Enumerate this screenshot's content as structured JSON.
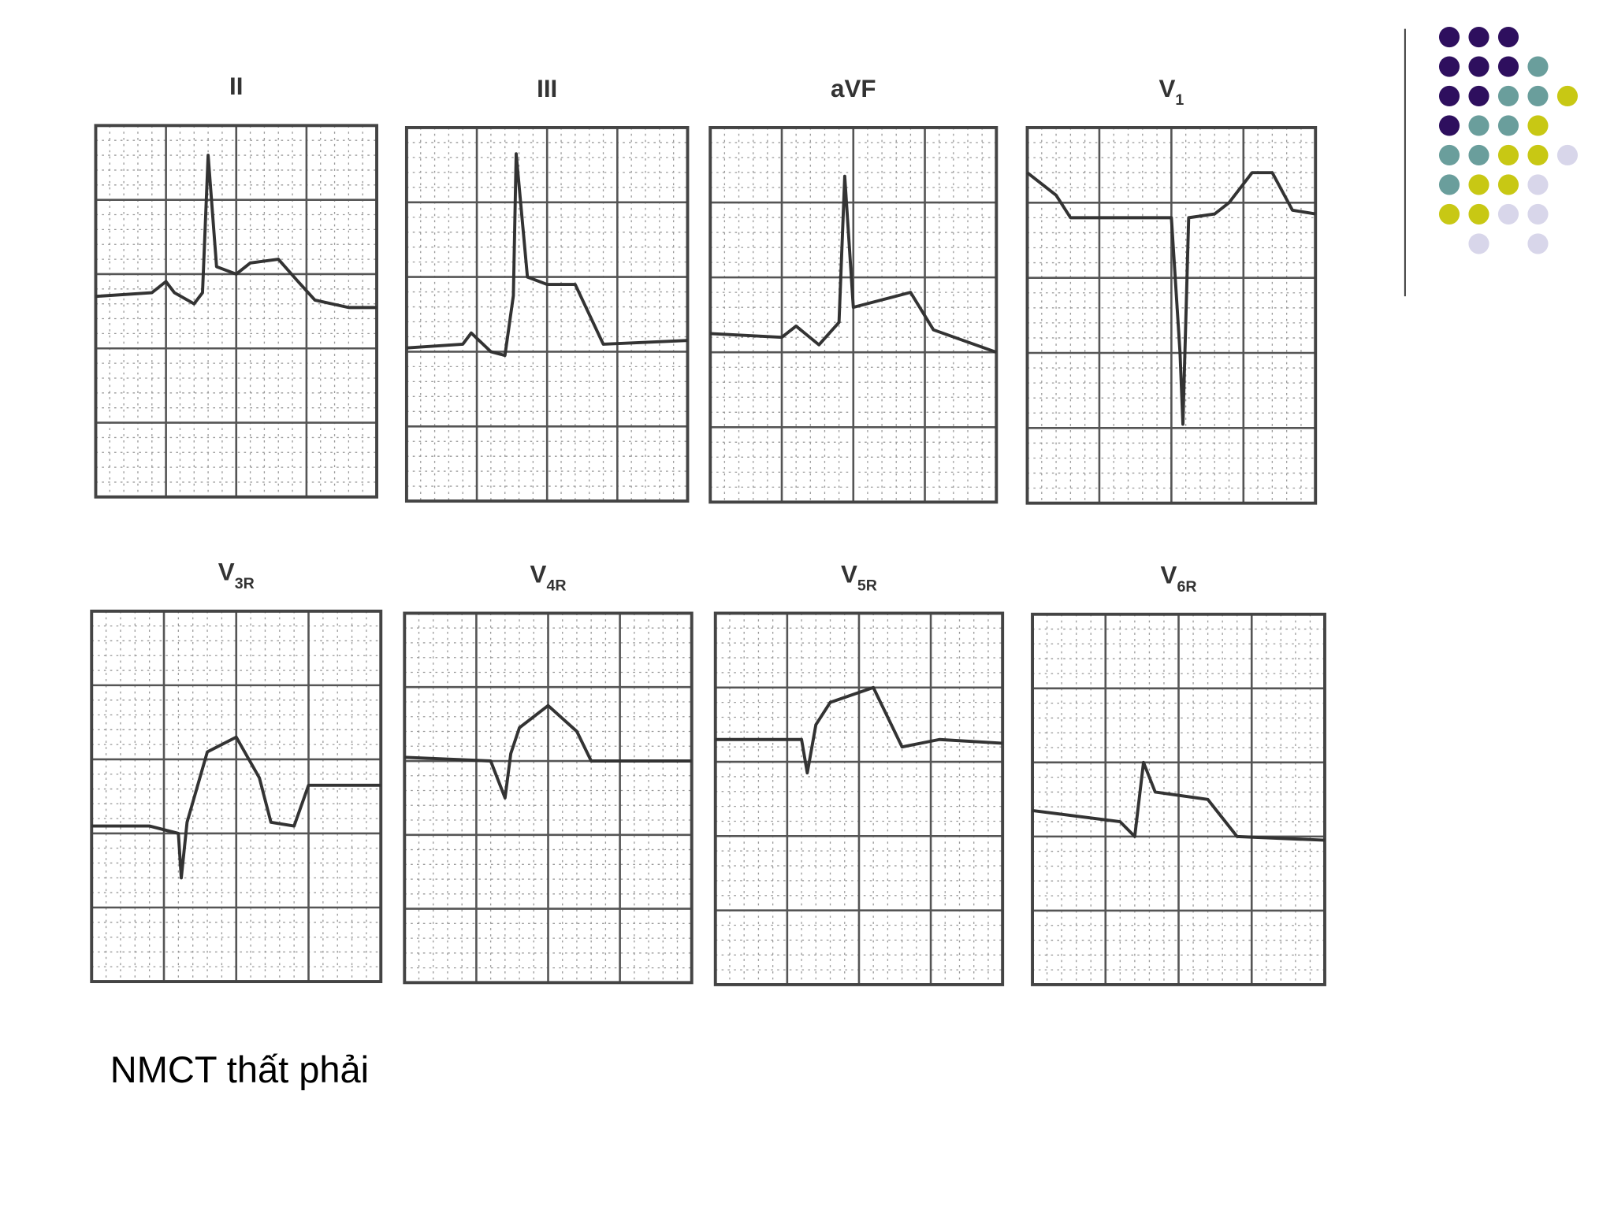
{
  "panels": [
    {
      "lead": "II"
    },
    {
      "lead": "III"
    },
    {
      "lead": "aVF"
    },
    {
      "lead": "V",
      "sub": "1"
    },
    {
      "lead": "V",
      "sub": "3R"
    },
    {
      "lead": "V",
      "sub": "4R"
    },
    {
      "lead": "V",
      "sub": "5R"
    },
    {
      "lead": "V",
      "sub": "6R"
    }
  ],
  "caption": "NMCT thất phải"
}
